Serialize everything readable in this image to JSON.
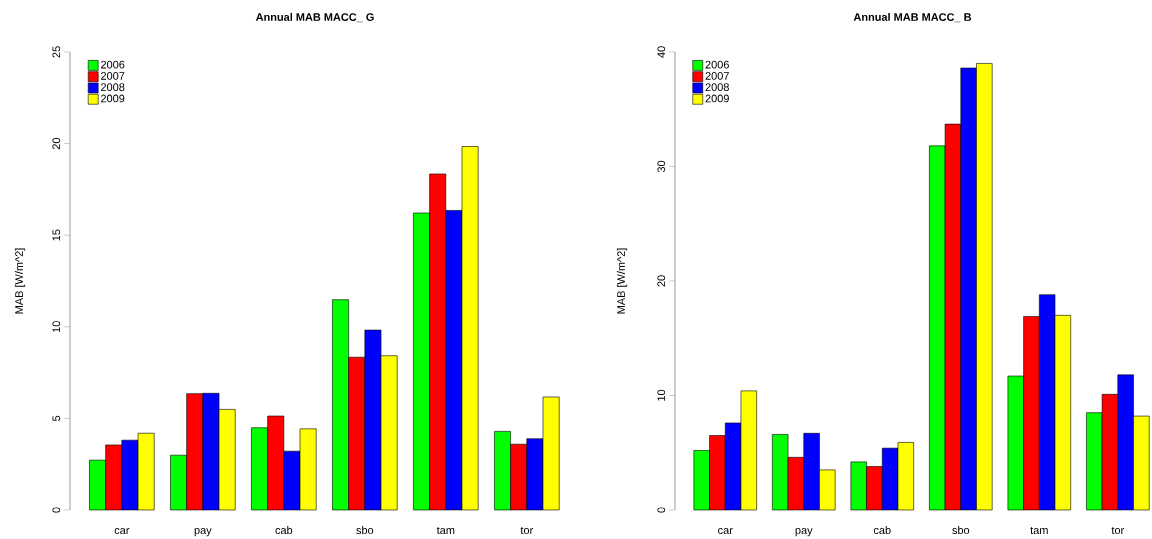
{
  "chart_data": [
    {
      "type": "bar",
      "title": "Annual MAB MACC_ G",
      "ylabel": "MAB [W/m^2]",
      "categories": [
        "car",
        "pay",
        "cab",
        "sbo",
        "tam",
        "tor"
      ],
      "ylim": [
        0,
        25
      ],
      "yticks": [
        0,
        5,
        10,
        15,
        20,
        25
      ],
      "legend": "top left",
      "grid": false,
      "series": [
        {
          "name": "2006",
          "color": "#00ff00",
          "values": [
            2.72,
            2.99,
            4.49,
            11.48,
            16.21,
            4.29
          ]
        },
        {
          "name": "2007",
          "color": "#ff0000",
          "values": [
            3.55,
            6.35,
            5.13,
            8.34,
            18.34,
            3.59
          ]
        },
        {
          "name": "2008",
          "color": "#0000ff",
          "values": [
            3.81,
            6.37,
            3.21,
            9.82,
            16.35,
            3.89
          ]
        },
        {
          "name": "2009",
          "color": "#ffff00",
          "values": [
            4.19,
            5.49,
            4.43,
            8.42,
            19.84,
            6.17
          ]
        }
      ]
    },
    {
      "type": "bar",
      "title": "Annual MAB MACC_ B",
      "ylabel": "MAB [W/m^2]",
      "categories": [
        "car",
        "pay",
        "cab",
        "sbo",
        "tam",
        "tor"
      ],
      "ylim": [
        0,
        40
      ],
      "yticks": [
        0,
        10,
        20,
        30,
        40
      ],
      "legend": "top left",
      "grid": false,
      "series": [
        {
          "name": "2006",
          "color": "#00ff00",
          "values": [
            5.2,
            6.6,
            4.2,
            31.8,
            11.7,
            8.5
          ]
        },
        {
          "name": "2007",
          "color": "#ff0000",
          "values": [
            6.5,
            4.6,
            3.8,
            33.7,
            16.9,
            10.1
          ]
        },
        {
          "name": "2008",
          "color": "#0000ff",
          "values": [
            7.6,
            6.7,
            5.4,
            38.6,
            18.8,
            11.8
          ]
        },
        {
          "name": "2009",
          "color": "#ffff00",
          "values": [
            10.4,
            3.5,
            5.9,
            39.0,
            17.0,
            8.2
          ]
        }
      ]
    }
  ]
}
